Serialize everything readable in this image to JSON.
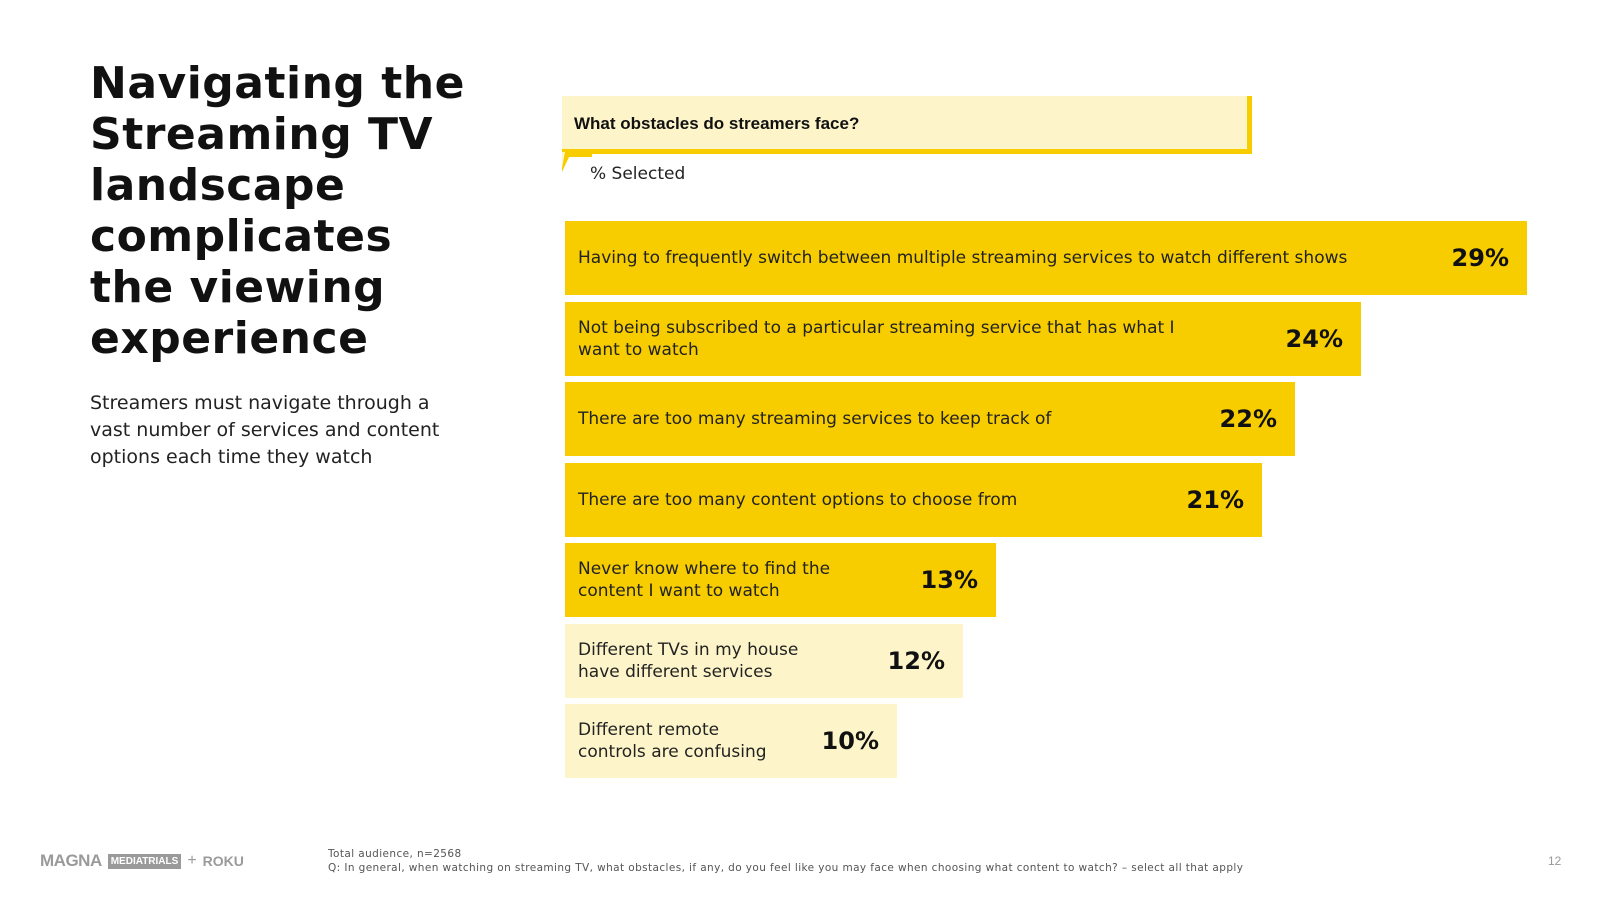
{
  "slide": {
    "title": "Navigating the Streaming TV landscape complicates the viewing experience",
    "subtitle": "Streamers must navigate through a vast number of services and content options each time they watch",
    "question": "What obstacles do streamers face?",
    "unit_label": "% Selected",
    "footnote_line1": "Total audience, n=2568",
    "footnote_line2": "Q: In general, when watching on streaming TV, what obstacles, if any, do you feel like you may face when choosing what content to watch? – select all that apply",
    "page_number": "12",
    "logos": {
      "magna": "MAGNA",
      "mediatrials": "MEDIATRIALS",
      "plus": "+",
      "roku": "ROKU"
    }
  },
  "colors": {
    "highlight": "#f7cd00",
    "muted": "#fdf5c9",
    "question_bg": "#fdf5c9"
  },
  "chart_data": {
    "type": "bar",
    "orientation": "horizontal",
    "title": "What obstacles do streamers face?",
    "unit_label": "% Selected",
    "xlim": [
      0,
      29
    ],
    "categories": [
      "Having to frequently switch between multiple streaming services to watch different shows",
      "Not being subscribed to a particular streaming service that has what I want to watch",
      "There are too many streaming services to keep track of",
      "There are too many content options to choose from",
      "Never know where to find the content I want to watch",
      "Different TVs in my house have different services",
      "Different remote controls are confusing"
    ],
    "values": [
      29,
      24,
      22,
      21,
      13,
      12,
      10
    ],
    "value_labels": [
      "29%",
      "24%",
      "22%",
      "21%",
      "13%",
      "12%",
      "10%"
    ],
    "highlighted": [
      true,
      true,
      true,
      true,
      true,
      false,
      false
    ]
  }
}
